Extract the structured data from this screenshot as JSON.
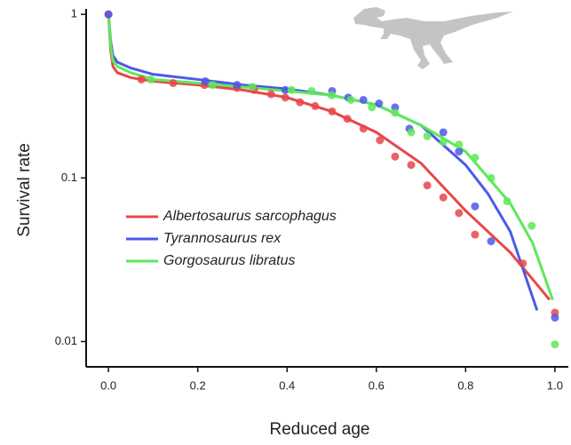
{
  "chart_data": {
    "type": "line",
    "xlabel": "Reduced age",
    "ylabel": "Survival rate",
    "xlim": [
      -0.05,
      1.03
    ],
    "ylim": [
      0.007,
      1.08
    ],
    "log_y": true,
    "xticks": [
      {
        "value": 0,
        "label": "0.0"
      },
      {
        "value": 0.2,
        "label": "0.2"
      },
      {
        "value": 0.4,
        "label": "0.4"
      },
      {
        "value": 0.6,
        "label": "0.6"
      },
      {
        "value": 0.8,
        "label": "0.8"
      },
      {
        "value": 1,
        "label": "1.0"
      }
    ],
    "yticks": [
      0.01,
      0.1,
      1
    ],
    "legend": "left",
    "series": [
      {
        "name": "Albertosaurus sarcophagus",
        "color": "#e8474a",
        "x": [
          0,
          0.005,
          0.01,
          0.02,
          0.05,
          0.1,
          0.2,
          0.3,
          0.4,
          0.5,
          0.6,
          0.7,
          0.8,
          0.9,
          0.95,
          0.988
        ],
        "values": [
          1,
          0.6,
          0.48,
          0.44,
          0.41,
          0.39,
          0.37,
          0.345,
          0.31,
          0.255,
          0.19,
          0.123,
          0.063,
          0.035,
          0.024,
          0.018
        ]
      },
      {
        "name": "Tyrannosaurus rex",
        "color": "#4a5ae8",
        "x": [
          0,
          0.005,
          0.01,
          0.02,
          0.05,
          0.1,
          0.2,
          0.3,
          0.4,
          0.5,
          0.6,
          0.7,
          0.8,
          0.85,
          0.9,
          0.96
        ],
        "values": [
          1,
          0.68,
          0.56,
          0.51,
          0.47,
          0.43,
          0.4,
          0.37,
          0.35,
          0.32,
          0.28,
          0.21,
          0.12,
          0.08,
          0.047,
          0.0155
        ]
      },
      {
        "name": "Gorgosaurus libratus",
        "color": "#5ee85a",
        "x": [
          0,
          0.005,
          0.01,
          0.02,
          0.05,
          0.1,
          0.2,
          0.3,
          0.4,
          0.5,
          0.6,
          0.7,
          0.8,
          0.9,
          0.95,
          0.995
        ],
        "values": [
          1,
          0.64,
          0.52,
          0.48,
          0.44,
          0.4,
          0.38,
          0.36,
          0.34,
          0.32,
          0.28,
          0.21,
          0.145,
          0.07,
          0.04,
          0.018
        ]
      }
    ],
    "scatter": [
      {
        "color": "#e8474a",
        "x": [
          0,
          0.0736,
          0.145,
          0.215,
          0.288,
          0.326,
          0.364,
          0.396,
          0.429,
          0.463,
          0.501,
          0.535,
          0.571,
          0.608,
          0.642,
          0.678,
          0.714,
          0.75,
          0.785,
          0.821,
          0.928,
          1.0
        ],
        "values": [
          1,
          0.4,
          0.38,
          0.37,
          0.355,
          0.345,
          0.325,
          0.31,
          0.29,
          0.275,
          0.255,
          0.23,
          0.2,
          0.17,
          0.135,
          0.12,
          0.09,
          0.076,
          0.061,
          0.045,
          0.03,
          0.015
        ]
      },
      {
        "color": "#4a5ae8",
        "x": [
          0,
          0.217,
          0.288,
          0.396,
          0.501,
          0.537,
          0.571,
          0.606,
          0.642,
          0.674,
          0.75,
          0.785,
          0.821,
          0.857,
          1.0
        ],
        "values": [
          1,
          0.39,
          0.37,
          0.345,
          0.34,
          0.31,
          0.3,
          0.285,
          0.27,
          0.2,
          0.19,
          0.145,
          0.067,
          0.041,
          0.014
        ]
      },
      {
        "color": "#5ee85a",
        "x": [
          0.095,
          0.233,
          0.322,
          0.41,
          0.455,
          0.5,
          0.543,
          0.59,
          0.642,
          0.678,
          0.714,
          0.75,
          0.785,
          0.821,
          0.857,
          0.893,
          0.948,
          1.0
        ],
        "values": [
          0.4,
          0.37,
          0.36,
          0.345,
          0.34,
          0.32,
          0.3,
          0.27,
          0.25,
          0.19,
          0.18,
          0.166,
          0.16,
          0.133,
          0.1,
          0.072,
          0.051,
          0.0096
        ]
      }
    ]
  }
}
